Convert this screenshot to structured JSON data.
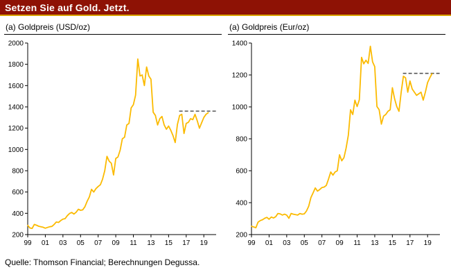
{
  "header": {
    "title": "Setzen Sie auf Gold. Jetzt.",
    "bar_color": "#8e1205",
    "rule_color": "#d9a300"
  },
  "source": "Quelle: Thomson Financial; Berechnungen Degussa.",
  "chart_data": [
    {
      "type": "line",
      "title": "(a) Goldpreis (USD/oz)",
      "xlabel": "",
      "ylabel": "",
      "ylim": [
        200,
        2000
      ],
      "yticks": [
        200,
        400,
        600,
        800,
        1000,
        1200,
        1400,
        1600,
        1800,
        2000
      ],
      "xlim": [
        1999,
        2020.4
      ],
      "xtick_years": [
        1999,
        2001,
        2003,
        2005,
        2007,
        2009,
        2011,
        2013,
        2015,
        2017,
        2019
      ],
      "xtick_labels": [
        "99",
        "01",
        "03",
        "05",
        "07",
        "09",
        "11",
        "13",
        "15",
        "17",
        "19"
      ],
      "grid": false,
      "legend": "none",
      "dashed_line": {
        "y": 1360,
        "x0": 2016.2,
        "x1": 2020.4,
        "color": "#555555"
      },
      "series": [
        {
          "name": "Goldpreis USD/oz",
          "color": "#fbba00",
          "x_start": 1999,
          "x_step": 0.25,
          "values": [
            287,
            262,
            258,
            295,
            288,
            278,
            273,
            269,
            260,
            267,
            274,
            277,
            295,
            318,
            314,
            332,
            345,
            350,
            378,
            398,
            408,
            393,
            410,
            438,
            428,
            432,
            462,
            513,
            555,
            625,
            600,
            632,
            652,
            668,
            720,
            800,
            935,
            890,
            870,
            760,
            915,
            930,
            995,
            1100,
            1115,
            1230,
            1245,
            1390,
            1420,
            1510,
            1850,
            1690,
            1700,
            1600,
            1775,
            1690,
            1660,
            1350,
            1320,
            1230,
            1290,
            1310,
            1230,
            1190,
            1220,
            1180,
            1130,
            1065,
            1235,
            1320,
            1330,
            1150,
            1245,
            1255,
            1290,
            1280,
            1330,
            1270,
            1200,
            1250,
            1300,
            1330,
            1345
          ]
        }
      ]
    },
    {
      "type": "line",
      "title": "(a) Goldpreis (Eur/oz)",
      "xlabel": "",
      "ylabel": "",
      "ylim": [
        200,
        1400
      ],
      "yticks": [
        200,
        400,
        600,
        800,
        1000,
        1200,
        1400
      ],
      "xlim": [
        1999,
        2020.4
      ],
      "xtick_years": [
        1999,
        2001,
        2003,
        2005,
        2007,
        2009,
        2011,
        2013,
        2015,
        2017,
        2019
      ],
      "xtick_labels": [
        "99",
        "01",
        "03",
        "05",
        "07",
        "09",
        "11",
        "13",
        "15",
        "17",
        "19"
      ],
      "grid": false,
      "legend": "none",
      "dashed_line": {
        "y": 1210,
        "x0": 2016.2,
        "x1": 2020.4,
        "color": "#555555"
      },
      "series": [
        {
          "name": "Goldpreis Eur/oz",
          "color": "#fbba00",
          "x_start": 1999,
          "x_step": 0.25,
          "values": [
            252,
            248,
            243,
            278,
            288,
            293,
            302,
            308,
            296,
            310,
            304,
            312,
            332,
            330,
            322,
            328,
            322,
            302,
            332,
            328,
            325,
            322,
            332,
            328,
            330,
            348,
            378,
            432,
            462,
            492,
            472,
            482,
            495,
            498,
            508,
            548,
            592,
            572,
            592,
            600,
            700,
            662,
            682,
            742,
            822,
            982,
            952,
            1042,
            1002,
            1045,
            1310,
            1270,
            1292,
            1272,
            1380,
            1282,
            1252,
            1002,
            982,
            892,
            942,
            952,
            972,
            982,
            1120,
            1052,
            1002,
            972,
            1092,
            1192,
            1182,
            1092,
            1162,
            1112,
            1092,
            1072,
            1082,
            1092,
            1042,
            1092,
            1152,
            1182,
            1208
          ]
        }
      ]
    }
  ]
}
